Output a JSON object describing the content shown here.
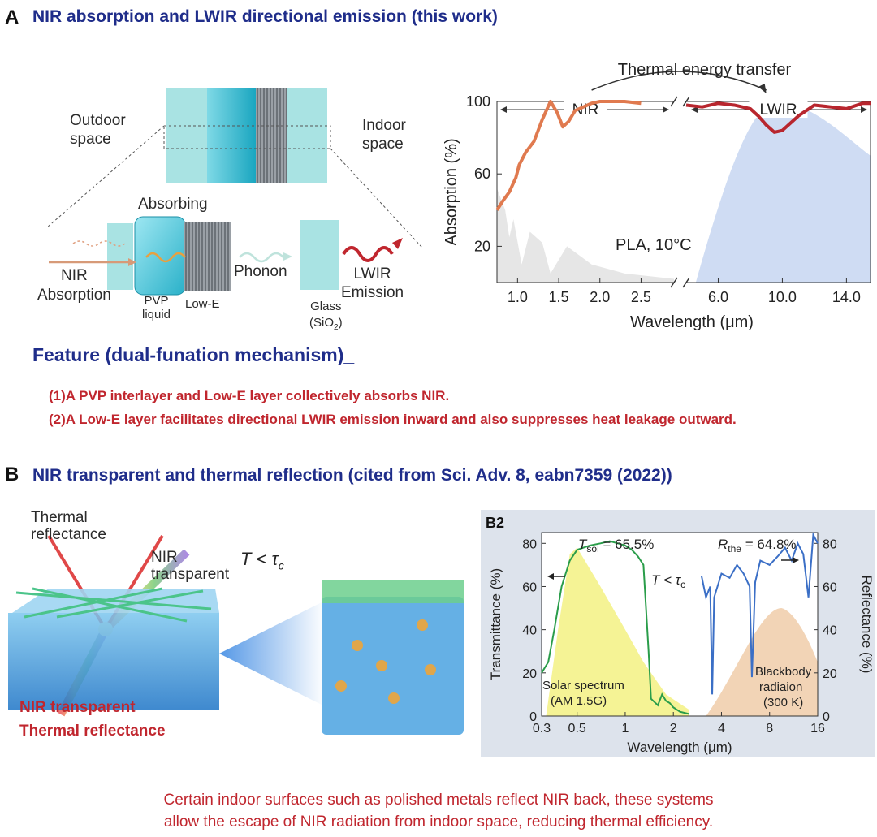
{
  "panel_a": {
    "letter": "A",
    "title": "NIR absorption and LWIR directional emission (this work)",
    "labels": {
      "outdoor": [
        "Outdoor",
        "space"
      ],
      "indoor": [
        "Indoor",
        "space"
      ],
      "absorbing": "Absorbing",
      "nir_absorption": [
        "NIR",
        "Absorption"
      ],
      "pvp": [
        "PVP",
        "liquid"
      ],
      "low_e": "Low-E",
      "phonon": "Phonon",
      "lwir_emission": [
        "LWIR",
        "Emission"
      ],
      "glass": [
        "Glass",
        "(SiO",
        "2",
        ")"
      ]
    },
    "feature_heading": "Feature (dual-funation mechanism)_",
    "features": [
      "(1)A PVP interlayer and Low-E layer collectively absorbs NIR.",
      "(2)A Low-E layer facilitates directional LWIR emission inward and also suppresses heat leakage outward."
    ]
  },
  "panel_b": {
    "letter": "B",
    "title": "NIR transparent and thermal reflection  (cited from  Sci. Adv. 8, eabn7359 (2022))",
    "labels": {
      "thermal_reflectance": [
        "Thermal",
        "reflectance"
      ],
      "nir_transparent": [
        "NIR",
        "transparent"
      ],
      "t_tau": "T < τ",
      "t_tau_sub": "c",
      "bottom_red": [
        "NIR transparent",
        "Thermal reflectance"
      ]
    }
  },
  "chart_data": [
    {
      "type": "line",
      "title": "",
      "top_annotation": "Thermal energy transfer",
      "region_labels": [
        "NIR",
        "LWIR"
      ],
      "annotation": "PLA, 10°C",
      "xlabel": "Wavelength (μm)",
      "ylabel": "Absorption (%)",
      "ylim": [
        0,
        100
      ],
      "yticks": [
        20,
        60,
        100
      ],
      "axis_break": true,
      "x_left_ticks": [
        "1.0",
        "1.5",
        "2.0",
        "2.5"
      ],
      "x_right_ticks": [
        "6.0",
        "10.0",
        "14.0"
      ],
      "xlim_left": [
        0.75,
        2.9
      ],
      "xlim_right": [
        4.0,
        15.5
      ],
      "colors": {
        "nir": "#e07a4f",
        "lwir": "#b8262e",
        "blackbody": "#cfdcf3",
        "solar": "#e6e6e6"
      },
      "series": [
        {
          "region": "left",
          "x": [
            0.75,
            0.82,
            0.9,
            0.98,
            1.02,
            1.1,
            1.2,
            1.3,
            1.4,
            1.48,
            1.55,
            1.62,
            1.7,
            1.8,
            1.9,
            2.0,
            2.1,
            2.3,
            2.5
          ],
          "y": [
            40,
            45,
            50,
            58,
            65,
            72,
            78,
            90,
            100,
            94,
            86,
            89,
            95,
            97,
            99,
            100,
            100,
            100,
            99
          ]
        },
        {
          "region": "right",
          "x": [
            4.0,
            5.0,
            6.0,
            7.0,
            8.0,
            8.5,
            9.0,
            9.5,
            10.0,
            10.5,
            11.0,
            12.0,
            13.0,
            14.0,
            15.0,
            15.5
          ],
          "y": [
            98,
            97,
            99,
            98,
            96,
            92,
            87,
            83,
            84,
            88,
            92,
            98,
            97,
            96,
            99,
            99
          ]
        }
      ]
    },
    {
      "type": "line",
      "panel_label": "B2",
      "title": "",
      "xlabel": "Wavelength (μm)",
      "ylabel_left": "Transmittance (%)",
      "ylabel_right": "Reflectance (%)",
      "xscale": "log",
      "xticks": [
        "0.3",
        "0.5",
        "1",
        "2",
        "4",
        "8",
        "16"
      ],
      "yticks": [
        0,
        20,
        40,
        60,
        80
      ],
      "ylim": [
        0,
        85
      ],
      "annotations": [
        "T",
        "sol",
        " = 65.5%",
        "R",
        "the",
        " = 64.8%",
        "T < τ",
        "c"
      ],
      "bands": [
        "Solar spectrum",
        "(AM 1.5G)",
        "Blackbody",
        "radiaion",
        "(300 K)"
      ],
      "colors": {
        "transmittance": "#2a9d4a",
        "reflectance": "#3b6fc6",
        "solar": "#f3f07a",
        "blackbody": "#f1cfae"
      },
      "series": [
        {
          "x": [
            0.3,
            0.33,
            0.36,
            0.4,
            0.45,
            0.5,
            0.6,
            0.7,
            0.8,
            0.9,
            1.0,
            1.1,
            1.2,
            1.3,
            1.4,
            1.45,
            1.6,
            1.7,
            1.8,
            1.9,
            2.0,
            2.2,
            2.5
          ],
          "y": [
            20,
            25,
            40,
            60,
            72,
            77,
            79,
            80,
            81,
            80,
            79,
            77,
            74,
            70,
            30,
            8,
            5,
            10,
            7,
            6,
            4,
            2,
            1
          ]
        },
        {
          "x": [
            3.0,
            3.2,
            3.4,
            3.5,
            3.6,
            4.0,
            4.5,
            5.0,
            5.5,
            6.0,
            6.2,
            6.5,
            7.0,
            8.0,
            9.0,
            10.0,
            11.0,
            12.0,
            13.0,
            14.0,
            15.0,
            16.0
          ],
          "y": [
            65,
            55,
            60,
            10,
            55,
            66,
            64,
            70,
            66,
            60,
            18,
            62,
            72,
            70,
            74,
            78,
            72,
            80,
            75,
            55,
            84,
            80
          ]
        }
      ]
    }
  ],
  "footer": [
    "Certain indoor surfaces such as polished metals reflect NIR back, these systems",
    "allow the escape of NIR radiation from indoor space, reducing thermal efficiency."
  ]
}
